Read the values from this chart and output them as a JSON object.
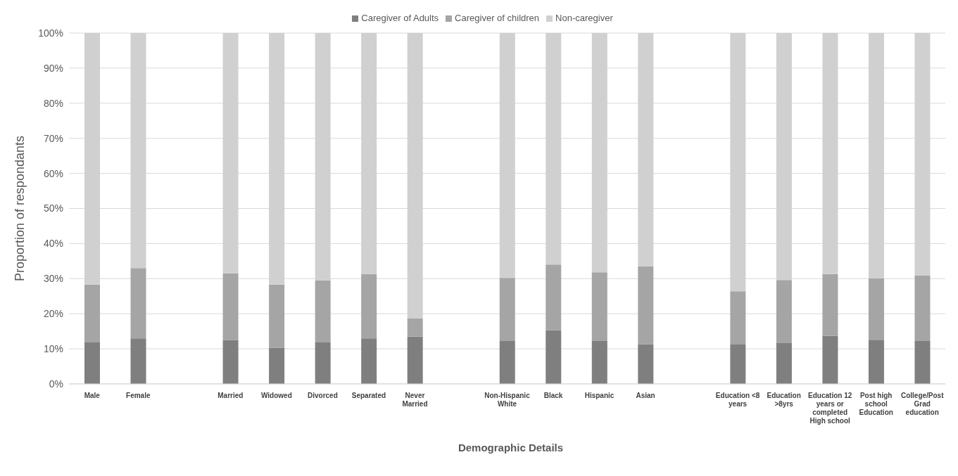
{
  "chart_data": {
    "type": "bar",
    "stacked": true,
    "xlabel": "Demographic Details",
    "ylabel": "Proportion of respondants",
    "categories": [
      "Male",
      "Female",
      null,
      "Married",
      "Widowed",
      "Divorced",
      "Separated",
      "Never Married",
      null,
      "Non-Hispanic White",
      "Black",
      "Hispanic",
      "Asian",
      null,
      "Education <8 years",
      "Education >8yrs",
      "Education 12 years or completed High school",
      "Post high school Education",
      "College/Post Grad education"
    ],
    "series": [
      {
        "name": "Caregiver of Adults",
        "color": "#7f7f7f",
        "values": [
          11.8,
          13,
          null,
          12.5,
          10.3,
          11.8,
          13,
          13.5,
          null,
          12.2,
          15.3,
          12.2,
          11.3,
          null,
          11.2,
          11.6,
          13.7,
          12.6,
          12.2
        ]
      },
      {
        "name": "Caregiver of children",
        "color": "#a5a5a5",
        "values": [
          16.5,
          20,
          null,
          19,
          18,
          17.7,
          18.3,
          5.2,
          null,
          18,
          18.7,
          19.6,
          22.2,
          null,
          15.2,
          18,
          17.6,
          17.5,
          18.7
        ]
      },
      {
        "name": "Non-caregiver",
        "color": "#d0d0d0",
        "values": [
          71.7,
          67,
          null,
          68.5,
          71.7,
          70.5,
          68.7,
          81.3,
          null,
          69.8,
          66,
          68.2,
          66.5,
          null,
          73.6,
          70.4,
          68.7,
          69.9,
          69.1
        ]
      }
    ],
    "ylim": [
      0,
      100
    ],
    "yticks": [
      {
        "value": 0,
        "label": "0%"
      },
      {
        "value": 10,
        "label": "10%"
      },
      {
        "value": 20,
        "label": "20%"
      },
      {
        "value": 30,
        "label": "30%"
      },
      {
        "value": 40,
        "label": "40%"
      },
      {
        "value": 50,
        "label": "50%"
      },
      {
        "value": 60,
        "label": "60%"
      },
      {
        "value": 70,
        "label": "70%"
      },
      {
        "value": 80,
        "label": "80%"
      },
      {
        "value": 90,
        "label": "90%"
      },
      {
        "value": 100,
        "label": "100%"
      }
    ],
    "grid": "y",
    "legend": "top"
  }
}
